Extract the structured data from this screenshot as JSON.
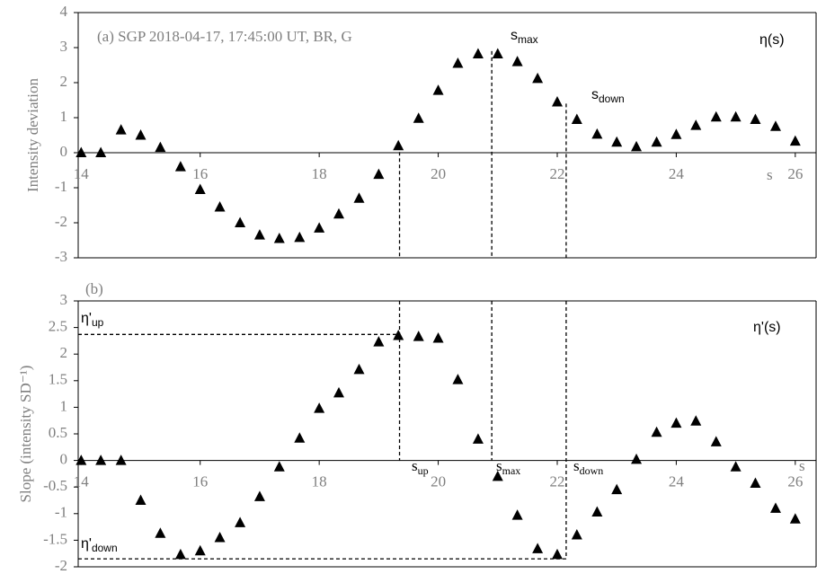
{
  "chart_data": [
    {
      "type": "scatter",
      "ylabel": "Intensity deviation",
      "color": "#000000",
      "x": [
        14.0,
        14.33,
        14.67,
        15.0,
        15.33,
        15.67,
        16.0,
        16.33,
        16.67,
        17.0,
        17.33,
        17.67,
        18.0,
        18.33,
        18.67,
        19.0,
        19.33,
        19.67,
        20.0,
        20.33,
        20.67,
        21.0,
        21.33,
        21.67,
        22.0,
        22.33,
        22.67,
        23.0,
        23.33,
        23.67,
        24.0,
        24.33,
        24.67,
        25.0,
        25.33,
        25.67,
        26.0
      ],
      "values": [
        0,
        0,
        0.65,
        0.5,
        0.15,
        -0.4,
        -1.05,
        -1.55,
        -2.0,
        -2.35,
        -2.45,
        -2.42,
        -2.15,
        -1.75,
        -1.3,
        -0.62,
        0.2,
        0.98,
        1.78,
        2.55,
        2.82,
        2.82,
        2.6,
        2.12,
        1.45,
        0.95,
        0.53,
        0.3,
        0.17,
        0.3,
        0.52,
        0.78,
        1.02,
        1.02,
        0.95,
        0.75,
        0.33
      ],
      "xlim": [
        13.95,
        26.35
      ],
      "xticks": [
        14,
        16,
        18,
        20,
        22,
        24,
        26
      ],
      "ylim": [
        -3,
        4
      ],
      "yticks": [
        -3,
        -2,
        -1,
        0,
        1,
        2,
        3,
        4
      ],
      "vlines": [
        {
          "x": 19.35,
          "y": 0.2
        },
        {
          "x": 20.9,
          "y": 2.9
        },
        {
          "x": 22.15,
          "y": 1.4
        }
      ],
      "annotations": [
        {
          "text": "(a) SGP 2018-04-17, 17:45:00 UT, BR, G"
        },
        {
          "text": "η(s)",
          "sans": true
        },
        {
          "text": "s",
          "sub": "max",
          "sans": true
        },
        {
          "text": "s",
          "sub": "down",
          "sans": true
        },
        {
          "text": "s"
        }
      ]
    },
    {
      "type": "scatter",
      "ylabel": "Slope (intensity SD⁻¹)",
      "color": "#000000",
      "x": [
        14.0,
        14.33,
        14.67,
        15.0,
        15.33,
        15.67,
        16.0,
        16.33,
        16.67,
        17.0,
        17.33,
        17.67,
        18.0,
        18.33,
        18.67,
        19.0,
        19.33,
        19.67,
        20.0,
        20.33,
        20.67,
        21.0,
        21.33,
        21.67,
        22.0,
        22.33,
        22.67,
        23.0,
        23.33,
        23.67,
        24.0,
        24.33,
        24.67,
        25.0,
        25.33,
        25.67,
        26.0
      ],
      "values": [
        0,
        0,
        0,
        -0.75,
        -1.37,
        -1.77,
        -1.7,
        -1.45,
        -1.17,
        -0.68,
        -0.12,
        0.42,
        0.98,
        1.27,
        1.71,
        2.23,
        2.35,
        2.33,
        2.3,
        1.52,
        0.4,
        -0.3,
        -1.03,
        -1.66,
        -1.77,
        -1.4,
        -0.97,
        -0.55,
        0.02,
        0.53,
        0.7,
        0.74,
        0.35,
        -0.12,
        -0.43,
        -0.9,
        -1.1
      ],
      "xlim": [
        13.95,
        26.35
      ],
      "xticks": [
        14,
        16,
        18,
        20,
        22,
        24,
        26
      ],
      "ylim": [
        -2,
        3
      ],
      "yticks": [
        -2,
        -1.5,
        -1,
        -0.5,
        0,
        0.5,
        1,
        1.5,
        2,
        2.5,
        3
      ],
      "vlines": [
        {
          "x": 19.35,
          "y": 0
        },
        {
          "x": 20.9,
          "y": 0
        },
        {
          "x": 22.15,
          "y": -1.85
        }
      ],
      "hlines": [
        {
          "y": 2.37,
          "x": 19.35
        },
        {
          "y": -1.85,
          "x": 22.15
        }
      ],
      "annotations": [
        {
          "text": "(b)"
        },
        {
          "text": "η'(s)",
          "sans": true
        },
        {
          "text": "η'",
          "sub": "up",
          "sans": true
        },
        {
          "text": "s",
          "sub": "up"
        },
        {
          "text": "s",
          "sub": "max"
        },
        {
          "text": "s",
          "sub": "down"
        },
        {
          "text": "s"
        },
        {
          "text": "η'",
          "sub": "down",
          "sans": true
        }
      ]
    }
  ]
}
